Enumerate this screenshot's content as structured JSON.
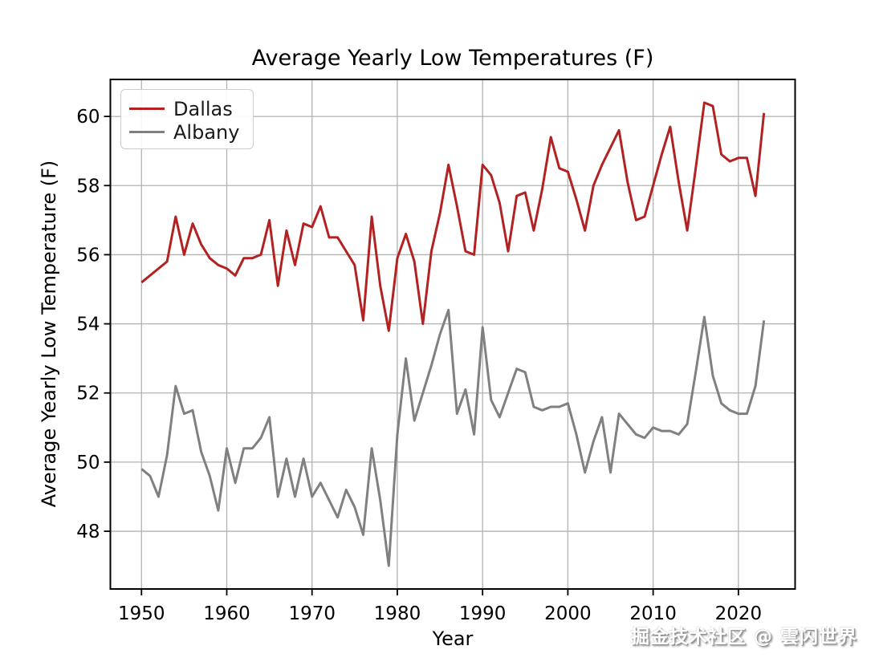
{
  "figure": {
    "watermark": "掘金技术社区 @ 雲闪世界"
  },
  "chart_data": {
    "type": "line",
    "title": "Average Yearly Low Temperatures (F)",
    "xlabel": "Year",
    "ylabel": "Average Yearly Low Temperature (F)",
    "grid": true,
    "legend_position": "upper-left",
    "xlim": [
      1946.35,
      2026.65
    ],
    "ylim": [
      46.33,
      61.07
    ],
    "xticks": [
      1950,
      1960,
      1970,
      1980,
      1990,
      2000,
      2010,
      2020
    ],
    "yticks": [
      48,
      50,
      52,
      54,
      56,
      58,
      60
    ],
    "x": [
      1950,
      1951,
      1952,
      1953,
      1954,
      1955,
      1956,
      1957,
      1958,
      1959,
      1960,
      1961,
      1962,
      1963,
      1964,
      1965,
      1966,
      1967,
      1968,
      1969,
      1970,
      1971,
      1972,
      1973,
      1974,
      1975,
      1976,
      1977,
      1978,
      1979,
      1980,
      1981,
      1982,
      1983,
      1984,
      1985,
      1986,
      1987,
      1988,
      1989,
      1990,
      1991,
      1992,
      1993,
      1994,
      1995,
      1996,
      1997,
      1998,
      1999,
      2000,
      2001,
      2002,
      2003,
      2004,
      2005,
      2006,
      2007,
      2008,
      2009,
      2010,
      2011,
      2012,
      2013,
      2014,
      2015,
      2016,
      2017,
      2018,
      2019,
      2020,
      2021,
      2022,
      2023
    ],
    "series": [
      {
        "name": "Dallas",
        "color": "#b22222",
        "values": [
          55.2,
          55.4,
          55.6,
          55.8,
          57.1,
          56.0,
          56.9,
          56.3,
          55.9,
          55.7,
          55.6,
          55.4,
          55.9,
          55.9,
          56.0,
          57.0,
          55.1,
          56.7,
          55.7,
          56.9,
          56.8,
          57.4,
          56.5,
          56.5,
          56.1,
          55.7,
          54.1,
          57.1,
          55.1,
          53.8,
          55.9,
          56.6,
          55.8,
          54.0,
          56.1,
          57.2,
          58.6,
          57.4,
          56.1,
          56.0,
          58.6,
          58.3,
          57.5,
          56.1,
          57.7,
          57.8,
          56.7,
          57.9,
          59.4,
          58.5,
          58.4,
          57.6,
          56.7,
          58.0,
          58.6,
          59.1,
          59.6,
          58.1,
          57.0,
          57.1,
          58.0,
          58.9,
          59.7,
          58.1,
          56.7,
          58.5,
          60.4,
          60.3,
          58.9,
          58.7,
          58.8,
          58.8,
          57.7,
          60.1
        ]
      },
      {
        "name": "Albany",
        "color": "#808080",
        "values": [
          49.8,
          49.6,
          49.0,
          50.2,
          52.2,
          51.4,
          51.5,
          50.3,
          49.6,
          48.6,
          50.4,
          49.4,
          50.4,
          50.4,
          50.7,
          51.3,
          49.0,
          50.1,
          49.0,
          50.1,
          49.0,
          49.4,
          48.9,
          48.4,
          49.2,
          48.7,
          47.9,
          50.4,
          48.9,
          47.0,
          50.8,
          53.0,
          51.2,
          52.0,
          52.8,
          53.7,
          54.4,
          51.4,
          52.1,
          50.8,
          53.9,
          51.8,
          51.3,
          52.0,
          52.7,
          52.6,
          51.6,
          51.5,
          51.6,
          51.6,
          51.7,
          50.8,
          49.7,
          50.6,
          51.3,
          49.7,
          51.4,
          51.1,
          50.8,
          50.7,
          51.0,
          50.9,
          50.9,
          50.8,
          51.1,
          52.6,
          54.2,
          52.5,
          51.7,
          51.5,
          51.4,
          51.4,
          52.2,
          54.1
        ]
      }
    ]
  }
}
